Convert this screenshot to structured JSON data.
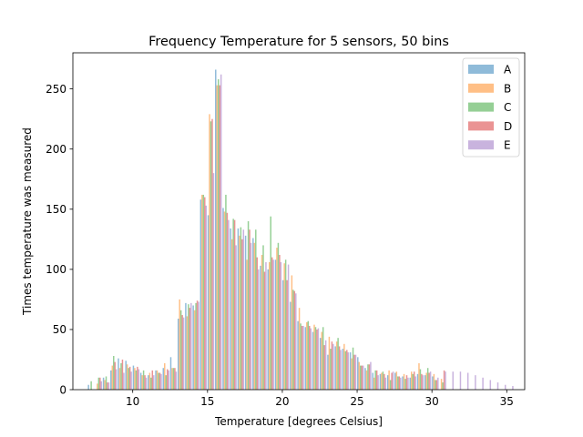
{
  "chart_data": {
    "type": "bar",
    "title": "Frequency Temperature for 5 sensors, 50 bins",
    "xlabel": "Temperature [degrees Celsius]",
    "ylabel": "Times temperature was measured",
    "xlim": [
      6.0,
      36.2
    ],
    "ylim": [
      0,
      280
    ],
    "xticks": [
      10,
      15,
      20,
      25,
      30,
      35
    ],
    "yticks": [
      0,
      50,
      100,
      150,
      200,
      250
    ],
    "grid": false,
    "legend": "top-right",
    "bins": [
      7.0,
      7.5,
      8.0,
      8.5,
      9.0,
      9.5,
      10.0,
      10.5,
      11.0,
      11.5,
      12.0,
      12.5,
      13.0,
      13.5,
      14.0,
      14.5,
      15.0,
      15.5,
      16.0,
      16.5,
      17.0,
      17.5,
      18.0,
      18.5,
      19.0,
      19.5,
      20.0,
      20.5,
      21.0,
      21.5,
      22.0,
      22.5,
      23.0,
      23.5,
      24.0,
      24.5,
      25.0,
      25.5,
      26.0,
      26.5,
      27.0,
      27.5,
      28.0,
      28.5,
      29.0,
      29.5,
      30.0,
      30.5,
      31.0,
      31.5,
      32.0,
      32.5,
      33.0,
      33.5,
      34.0,
      34.5,
      35.0
    ],
    "bar_width": 0.09,
    "series": [
      {
        "name": "A",
        "color": "#1f77b4",
        "values": [
          4,
          0,
          10,
          16,
          26,
          24,
          20,
          14,
          12,
          16,
          18,
          27,
          59,
          72,
          70,
          158,
          145,
          266,
          151,
          134,
          134,
          128,
          126,
          103,
          100,
          108,
          91,
          73,
          57,
          52,
          48,
          43,
          29,
          36,
          34,
          31,
          27,
          18,
          14,
          13,
          12,
          14,
          11,
          10,
          13,
          12,
          11,
          0,
          0,
          0,
          0,
          0,
          0,
          0,
          0,
          0,
          0
        ]
      },
      {
        "name": "B",
        "color": "#ff7f0e",
        "values": [
          0,
          5,
          8,
          20,
          18,
          21,
          18,
          12,
          14,
          16,
          22,
          18,
          75,
          61,
          66,
          162,
          229,
          253,
          148,
          125,
          128,
          108,
          122,
          112,
          106,
          118,
          105,
          95,
          68,
          56,
          54,
          48,
          44,
          40,
          38,
          26,
          23,
          16,
          10,
          14,
          16,
          15,
          13,
          15,
          22,
          14,
          13,
          9,
          0,
          0,
          0,
          0,
          0,
          0,
          0,
          0,
          0
        ]
      },
      {
        "name": "C",
        "color": "#2ca02c",
        "values": [
          7,
          10,
          11,
          28,
          22,
          18,
          16,
          16,
          10,
          14,
          12,
          18,
          66,
          71,
          72,
          162,
          223,
          258,
          162,
          142,
          135,
          140,
          133,
          120,
          144,
          122,
          108,
          83,
          55,
          57,
          52,
          52,
          34,
          43,
          32,
          35,
          20,
          21,
          16,
          15,
          8,
          11,
          9,
          13,
          17,
          18,
          8,
          6,
          0,
          0,
          0,
          0,
          0,
          0,
          0,
          0,
          0
        ]
      },
      {
        "name": "D",
        "color": "#d62728",
        "values": [
          0,
          10,
          6,
          23,
          25,
          19,
          19,
          12,
          16,
          14,
          17,
          18,
          62,
          68,
          74,
          160,
          225,
          253,
          147,
          141,
          125,
          133,
          110,
          98,
          110,
          112,
          91,
          82,
          53,
          53,
          50,
          37,
          40,
          36,
          33,
          29,
          20,
          21,
          16,
          13,
          14,
          11,
          12,
          15,
          13,
          14,
          8,
          16,
          0,
          0,
          0,
          0,
          0,
          0,
          0,
          0,
          0
        ]
      },
      {
        "name": "E",
        "color": "#9467bd",
        "values": [
          0,
          7,
          6,
          17,
          14,
          15,
          17,
          10,
          12,
          13,
          16,
          15,
          60,
          72,
          73,
          153,
          180,
          262,
          141,
          120,
          133,
          122,
          100,
          106,
          108,
          106,
          104,
          80,
          53,
          51,
          51,
          41,
          38,
          33,
          31,
          29,
          20,
          23,
          12,
          10,
          15,
          10,
          10,
          11,
          12,
          15,
          10,
          15,
          15,
          15,
          14,
          12,
          10,
          8,
          6,
          4,
          3
        ]
      }
    ]
  }
}
